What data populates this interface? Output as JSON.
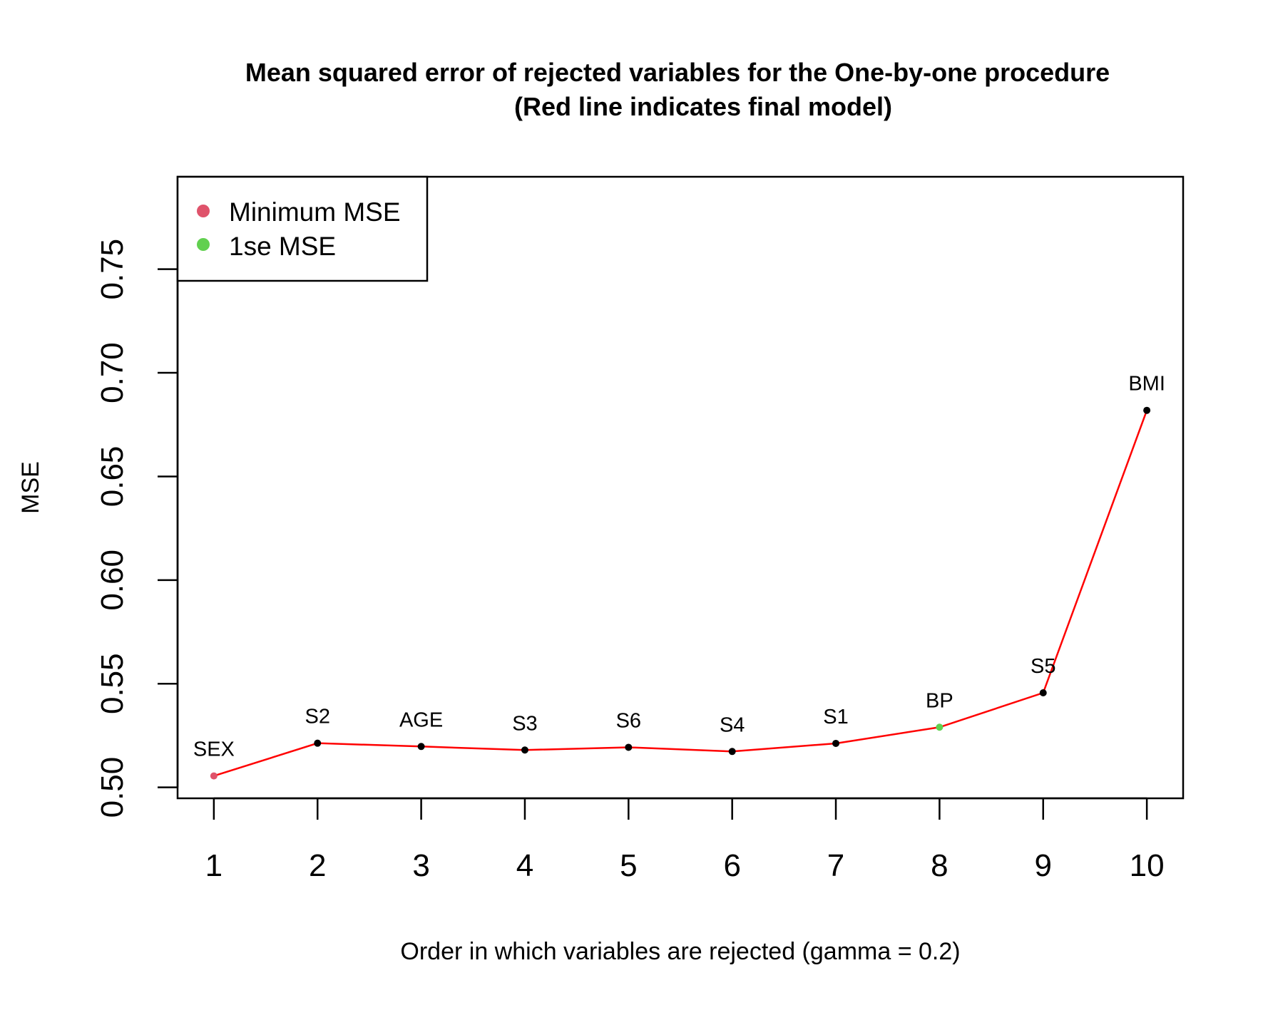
{
  "chart_data": {
    "type": "line",
    "title_line1": "Mean squared error of rejected variables for the One-by-one procedure",
    "title_line2": "(Red line indicates final model)",
    "xlabel": "Order in which variables are rejected (gamma = 0.2)",
    "ylabel": "MSE",
    "x": [
      1,
      2,
      3,
      4,
      5,
      6,
      7,
      8,
      9,
      10
    ],
    "x_tick_labels": [
      "1",
      "2",
      "3",
      "4",
      "5",
      "6",
      "7",
      "8",
      "9",
      "10"
    ],
    "y_ticks": [
      0.5,
      0.55,
      0.6,
      0.65,
      0.7,
      0.75
    ],
    "y_tick_labels": [
      "0.50",
      "0.55",
      "0.60",
      "0.65",
      "0.70",
      "0.75"
    ],
    "xlim": [
      0.65,
      10.35
    ],
    "ylim": [
      0.4947,
      0.7946
    ],
    "series": [
      {
        "line_color": "#FF0000",
        "point_labels": [
          "SEX",
          "S2",
          "AGE",
          "S3",
          "S6",
          "S4",
          "S1",
          "BP",
          "S5",
          "BMI"
        ],
        "values": [
          0.5055,
          0.5213,
          0.5197,
          0.518,
          0.5193,
          0.5173,
          0.5212,
          0.529,
          0.5456,
          0.6819
        ],
        "point_colors": [
          "#DF536B",
          "#000000",
          "#000000",
          "#000000",
          "#000000",
          "#000000",
          "#000000",
          "#61D04F",
          "#000000",
          "#000000"
        ]
      }
    ],
    "legend": {
      "position": "top-left",
      "entries": [
        {
          "label": "Minimum MSE",
          "color": "#DF536B"
        },
        {
          "label": "1se MSE",
          "color": "#61D04F"
        }
      ]
    },
    "grid": false
  }
}
